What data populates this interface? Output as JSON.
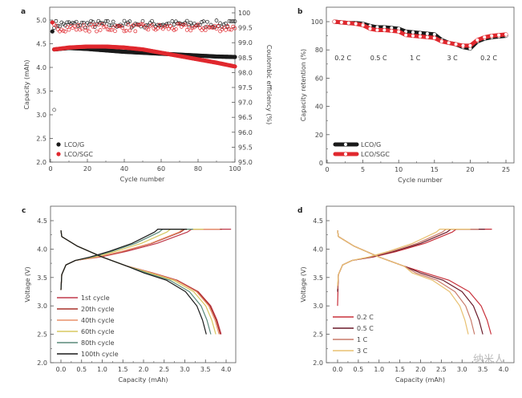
{
  "chart_data": [
    {
      "panel": "a",
      "type": "line",
      "xlabel": "Cycle number",
      "ylabel": "Capacity (mAh)",
      "y2label": "Coulombic efficiency (%)",
      "xlim": [
        0,
        100
      ],
      "ylim": [
        2.0,
        5.2
      ],
      "y2lim": [
        95.0,
        100.0
      ],
      "xticks": [
        "0",
        "20",
        "40",
        "60",
        "80",
        "100"
      ],
      "yticks": [
        "2.0",
        "2.5",
        "3.0",
        "3.5",
        "4.0",
        "4.5",
        "5.0"
      ],
      "y2ticks": [
        "95.0",
        "95.5",
        "96.0",
        "96.5",
        "97.0",
        "97.5",
        "98.0",
        "98.5",
        "99.0",
        "99.5",
        "100"
      ],
      "legend": "bottom-left",
      "series": [
        {
          "name": "LCO/G",
          "color": "#1a1a1a",
          "capacity": [
            [
              1,
              4.76
            ],
            [
              2,
              4.38
            ],
            [
              10,
              4.41
            ],
            [
              20,
              4.39
            ],
            [
              30,
              4.36
            ],
            [
              40,
              4.33
            ],
            [
              50,
              4.31
            ],
            [
              60,
              4.29
            ],
            [
              70,
              4.27
            ],
            [
              80,
              4.25
            ],
            [
              90,
              4.23
            ],
            [
              100,
              4.22
            ]
          ],
          "ce_mean": 99.62,
          "ce_first": 96.75
        },
        {
          "name": "LCO/SGC",
          "color": "#e0282e",
          "capacity": [
            [
              1,
              4.95
            ],
            [
              2,
              4.38
            ],
            [
              10,
              4.42
            ],
            [
              20,
              4.44
            ],
            [
              30,
              4.44
            ],
            [
              40,
              4.42
            ],
            [
              50,
              4.38
            ],
            [
              60,
              4.31
            ],
            [
              70,
              4.24
            ],
            [
              80,
              4.17
            ],
            [
              90,
              4.1
            ],
            [
              100,
              4.02
            ]
          ],
          "ce_mean": 99.5,
          "ce_first": 99.5
        }
      ]
    },
    {
      "panel": "b",
      "type": "line",
      "xlabel": "Cycle number",
      "ylabel": "Capacity retention (%)",
      "xlim": [
        0,
        25
      ],
      "ylim": [
        0,
        105
      ],
      "xticks": [
        "0",
        "5",
        "10",
        "15",
        "20",
        "25"
      ],
      "yticks": [
        "0",
        "20",
        "40",
        "60",
        "80",
        "100"
      ],
      "legend": "bottom-left",
      "annotations": [
        "0.2 C",
        "0.5 C",
        "1 C",
        "3 C",
        "0.2 C"
      ],
      "series": [
        {
          "name": "LCO/G",
          "color": "#1a1a1a",
          "x": [
            1,
            2,
            3,
            4,
            5,
            6,
            7,
            8,
            9,
            10,
            11,
            12,
            13,
            14,
            15,
            16,
            17,
            18,
            19,
            20,
            21,
            22,
            23,
            24,
            25
          ],
          "y": [
            100,
            99.5,
            99,
            99,
            98.5,
            97,
            96,
            96,
            95.5,
            95,
            93,
            92.5,
            92,
            91.5,
            91,
            87,
            85,
            84,
            82,
            81,
            86,
            88,
            89,
            89.5,
            90
          ]
        },
        {
          "name": "LCO/SGC",
          "color": "#e0282e",
          "x": [
            1,
            2,
            3,
            4,
            5,
            6,
            7,
            8,
            9,
            10,
            11,
            12,
            13,
            14,
            15,
            16,
            17,
            18,
            19,
            20,
            21,
            22,
            23,
            24,
            25
          ],
          "y": [
            100,
            99.5,
            99,
            98.5,
            97.5,
            95,
            94,
            94,
            93.5,
            93,
            90.5,
            90,
            89.5,
            89,
            88.5,
            86,
            85,
            84,
            83,
            83,
            87,
            89,
            90,
            90.5,
            91
          ]
        }
      ]
    },
    {
      "panel": "c",
      "type": "line",
      "xlabel": "Capacity (mAh)",
      "ylabel": "Voltage (V)",
      "xlim": [
        -0.2,
        4.2
      ],
      "ylim": [
        2.0,
        4.75
      ],
      "xticks": [
        "0.0",
        "0.5",
        "1.0",
        "1.5",
        "2.0",
        "2.5",
        "3.0",
        "3.5",
        "4.0"
      ],
      "yticks": [
        "2.0",
        "2.5",
        "3.0",
        "3.5",
        "4.0",
        "4.5"
      ],
      "legend": "bottom-left",
      "series": [
        {
          "name": "1st cycle",
          "color": "#c0394a",
          "charge_end": 4.12,
          "discharge_end": 3.88
        },
        {
          "name": "20th cycle",
          "color": "#a8302a",
          "charge_end": 3.9,
          "discharge_end": 3.86
        },
        {
          "name": "40th cycle",
          "color": "#e8906a",
          "charge_end": 3.85,
          "discharge_end": 3.83
        },
        {
          "name": "60th cycle",
          "color": "#d8c860",
          "charge_end": 3.45,
          "discharge_end": 3.75
        },
        {
          "name": "80th cycle",
          "color": "#5a8a7a",
          "charge_end": 3.2,
          "discharge_end": 3.63
        },
        {
          "name": "100th cycle",
          "color": "#1a1a1a",
          "charge_end": 3.05,
          "discharge_end": 3.52
        }
      ]
    },
    {
      "panel": "d",
      "type": "line",
      "xlabel": "Capacity (mAh)",
      "ylabel": "Voltage (V)",
      "xlim": [
        -0.2,
        4.2
      ],
      "ylim": [
        2.0,
        4.75
      ],
      "xticks": [
        "0.0",
        "0.5",
        "1.0",
        "1.5",
        "2.0",
        "2.5",
        "3.0",
        "3.5",
        "4.0"
      ],
      "yticks": [
        "2.0",
        "2.5",
        "3.0",
        "3.5",
        "4.0",
        "4.5"
      ],
      "legend": "bottom-left",
      "series": [
        {
          "name": "0.2 C",
          "color": "#c8303a",
          "charge_end": 3.72,
          "discharge_end": 3.7,
          "start_v": 3.0
        },
        {
          "name": "0.5 C",
          "color": "#6a1a2a",
          "charge_end": 3.55,
          "discharge_end": 3.5,
          "start_v": 3.25
        },
        {
          "name": "1 C",
          "color": "#c87a6a",
          "charge_end": 3.4,
          "discharge_end": 3.3,
          "start_v": 3.3
        },
        {
          "name": "3 C",
          "color": "#e8c070",
          "charge_end": 3.2,
          "discharge_end": 3.15,
          "start_v": 3.35
        }
      ]
    }
  ],
  "watermark": "纳米人"
}
